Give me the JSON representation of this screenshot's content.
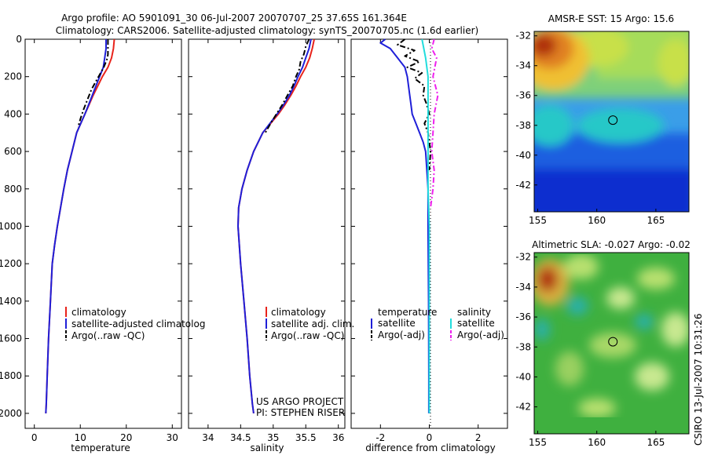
{
  "header": {
    "line1": "Argo profile: AO 5901091_30 06-Jul-2007 20070707_25 37.65S 161.364E",
    "line2": "Climatology: CARS2006. Satellite-adjusted climatology: synTS_20070705.nc (1.6d earlier)"
  },
  "colors": {
    "climatology": "#e8231b",
    "satellite": "#1f1fd8",
    "argo": "#000000",
    "salinity_sat": "#22dddd",
    "salinity_argo": "#ee22ee"
  },
  "chart_data": [
    {
      "type": "line",
      "name": "temperature-profile",
      "xlabel": "temperature",
      "ylabel": "",
      "xlim": [
        -2,
        32
      ],
      "ylim": [
        2080,
        0
      ],
      "xticks": [
        "0",
        "10",
        "20",
        "30"
      ],
      "xtick_values": [
        0,
        10,
        20,
        30
      ],
      "yticks": [
        "0",
        "200",
        "400",
        "600",
        "800",
        "1000",
        "1200",
        "1400",
        "1600",
        "1800",
        "2000"
      ],
      "ytick_values": [
        0,
        200,
        400,
        600,
        800,
        1000,
        1200,
        1400,
        1600,
        1800,
        2000
      ],
      "legend": [
        "climatology",
        "satellite-adjusted climatolog",
        "Argo(..raw -QC)"
      ],
      "series": [
        {
          "name": "climatology",
          "color": "#e8231b",
          "dash": "",
          "x": [
            17.4,
            17.2,
            16.8,
            16.0,
            14.8,
            13.8,
            12.8,
            11.9,
            11.0,
            10.1,
            9.2,
            8.2,
            7.2,
            6.4,
            5.7,
            5.0,
            4.4,
            3.9,
            3.5,
            3.1,
            2.8,
            2.6,
            2.5
          ],
          "y": [
            0,
            50,
            100,
            150,
            200,
            250,
            300,
            350,
            400,
            450,
            500,
            600,
            700,
            800,
            900,
            1000,
            1100,
            1200,
            1400,
            1600,
            1800,
            1950,
            2000
          ]
        },
        {
          "name": "satellite-adjusted climatology",
          "color": "#1f1fd8",
          "dash": "",
          "x": [
            15.6,
            15.6,
            15.3,
            15.0,
            14.2,
            13.4,
            12.6,
            11.8,
            11.0,
            10.1,
            9.2,
            8.2,
            7.2,
            6.4,
            5.7,
            5.0,
            4.4,
            3.9,
            3.5,
            3.1,
            2.8,
            2.6,
            2.5
          ],
          "y": [
            0,
            50,
            100,
            150,
            200,
            250,
            300,
            350,
            400,
            450,
            500,
            600,
            700,
            800,
            900,
            1000,
            1100,
            1200,
            1400,
            1600,
            1800,
            1950,
            2000
          ]
        },
        {
          "name": "Argo",
          "color": "#000000",
          "dash": "7,3,2,3",
          "x": [
            16.0,
            16.0,
            16.0,
            16.0,
            15.9,
            15.6,
            15.1,
            14.2,
            13.3,
            12.4,
            11.6,
            10.8,
            10.1,
            9.5
          ],
          "y": [
            0,
            30,
            60,
            80,
            100,
            120,
            150,
            190,
            230,
            270,
            320,
            370,
            420,
            470
          ]
        }
      ]
    },
    {
      "type": "line",
      "name": "salinity-profile",
      "xlabel": "salinity",
      "xlim": [
        33.7,
        36.1
      ],
      "ylim": [
        2080,
        0
      ],
      "xticks": [
        "34",
        "34.5",
        "35",
        "35.5",
        "36"
      ],
      "xtick_values": [
        34,
        34.5,
        35,
        35.5,
        36
      ],
      "legend": [
        "climatology",
        "satellite adj. clim.",
        "Argo(..raw -QC)"
      ],
      "credit": [
        "US ARGO PROJECT",
        "PI: STEPHEN RISER"
      ],
      "series": [
        {
          "name": "climatology",
          "color": "#e8231b",
          "dash": "",
          "x": [
            35.63,
            35.6,
            35.56,
            35.5,
            35.42,
            35.35,
            35.27,
            35.18,
            35.08,
            34.96,
            34.84,
            34.7,
            34.6,
            34.52,
            34.47,
            34.46,
            34.5,
            34.55,
            34.6,
            34.64,
            34.68,
            34.7
          ],
          "y": [
            0,
            50,
            100,
            150,
            200,
            250,
            300,
            350,
            400,
            450,
            500,
            600,
            700,
            800,
            900,
            1000,
            1200,
            1400,
            1600,
            1800,
            1950,
            2000
          ]
        },
        {
          "name": "satellite adj. clim.",
          "color": "#1f1fd8",
          "dash": "",
          "x": [
            35.58,
            35.55,
            35.5,
            35.45,
            35.38,
            35.32,
            35.25,
            35.16,
            35.06,
            34.95,
            34.84,
            34.7,
            34.6,
            34.52,
            34.47,
            34.46,
            34.5,
            34.55,
            34.6,
            34.64,
            34.68,
            34.7
          ],
          "y": [
            0,
            50,
            100,
            150,
            200,
            250,
            300,
            350,
            400,
            450,
            500,
            600,
            700,
            800,
            900,
            1000,
            1200,
            1400,
            1600,
            1800,
            1950,
            2000
          ]
        },
        {
          "name": "Argo",
          "color": "#000000",
          "dash": "7,3,2,3",
          "x": [
            35.55,
            35.5,
            35.47,
            35.42,
            35.4,
            35.35,
            35.3,
            35.22,
            35.14,
            35.05,
            34.96,
            34.88
          ],
          "y": [
            0,
            40,
            80,
            120,
            160,
            200,
            250,
            300,
            350,
            400,
            450,
            500
          ]
        }
      ]
    },
    {
      "type": "line",
      "name": "difference-from-climatology",
      "xlabel": "difference from climatology",
      "xlim": [
        -3.2,
        3.2
      ],
      "ylim": [
        2080,
        0
      ],
      "xticks": [
        "-2",
        "0",
        "2"
      ],
      "xtick_values": [
        -2,
        0,
        2
      ],
      "legend_left": {
        "title": "temperature",
        "items": [
          "satellite",
          "Argo(-adj)"
        ]
      },
      "legend_right": {
        "title": "salinity",
        "items": [
          "satellite",
          "Argo(-adj)"
        ]
      },
      "series": [
        {
          "name": "temperature satellite",
          "color": "#1f1fd8",
          "dash": "",
          "x": [
            -1.8,
            -2.0,
            -1.6,
            -1.3,
            -1.0,
            -0.9,
            -0.8,
            -0.75,
            -0.7,
            -0.55,
            -0.4,
            -0.25,
            -0.15,
            -0.1,
            -0.05,
            -0.05,
            -0.03,
            -0.02,
            -0.02
          ],
          "y": [
            0,
            20,
            50,
            100,
            150,
            200,
            300,
            350,
            400,
            450,
            500,
            550,
            600,
            700,
            800,
            1000,
            1400,
            1800,
            2000
          ]
        },
        {
          "name": "temperature Argo(-adj)",
          "color": "#000000",
          "dash": "7,3,2,3",
          "x": [
            -1.0,
            -1.3,
            -0.6,
            -1.0,
            -0.4,
            -0.9,
            -0.3,
            -0.6,
            -0.2,
            -0.25,
            -0.1,
            0.0,
            -0.2,
            -0.05,
            0.05,
            0.0
          ],
          "y": [
            0,
            30,
            60,
            90,
            120,
            150,
            180,
            210,
            250,
            300,
            350,
            400,
            450,
            500,
            600,
            700
          ]
        },
        {
          "name": "salinity satellite",
          "color": "#22dddd",
          "dash": "",
          "x": [
            -0.3,
            -0.15,
            -0.05,
            -0.05,
            -0.05,
            -0.05,
            -0.05,
            0.0,
            0.0,
            0.0,
            0.0
          ],
          "y": [
            0,
            100,
            200,
            400,
            600,
            700,
            800,
            1000,
            1400,
            1800,
            2000
          ]
        },
        {
          "name": "salinity Argo(-adj)",
          "color": "#ee22ee",
          "dash": "7,3,2,3",
          "x": [
            0.2,
            0.1,
            0.3,
            0.15,
            0.35,
            0.2,
            0.15,
            0.1,
            0.2,
            0.15,
            0.05
          ],
          "y": [
            0,
            50,
            100,
            200,
            300,
            400,
            500,
            600,
            700,
            800,
            900
          ]
        }
      ]
    },
    {
      "type": "heatmap",
      "name": "amsre-sst-map",
      "title": "AMSR-E SST: 15 Argo: 15.6",
      "xlim": [
        154.7,
        167.8
      ],
      "ylim": [
        -43.8,
        -31.7
      ],
      "xticks": [
        "155",
        "160",
        "165"
      ],
      "xtick_values": [
        155,
        160,
        165
      ],
      "yticks": [
        "-32",
        "-34",
        "-36",
        "-38",
        "-40",
        "-42"
      ],
      "ytick_values": [
        -32,
        -34,
        -36,
        -38,
        -40,
        -42
      ],
      "argo_position": {
        "lon": 161.364,
        "lat": -37.65
      }
    },
    {
      "type": "heatmap",
      "name": "altimetric-sla-map",
      "title": "Altimetric SLA: -0.027 Argo: -0.02",
      "xlim": [
        154.7,
        167.8
      ],
      "ylim": [
        -43.8,
        -31.7
      ],
      "xticks": [
        "155",
        "160",
        "165"
      ],
      "xtick_values": [
        155,
        160,
        165
      ],
      "yticks": [
        "-32",
        "-34",
        "-36",
        "-38",
        "-40",
        "-42"
      ],
      "ytick_values": [
        -32,
        -34,
        -36,
        -38,
        -40,
        -42
      ],
      "argo_position": {
        "lon": 161.364,
        "lat": -37.65
      }
    }
  ],
  "footer": {
    "stamp": "CSIRO 13-Jul-2007 10:31:26"
  }
}
